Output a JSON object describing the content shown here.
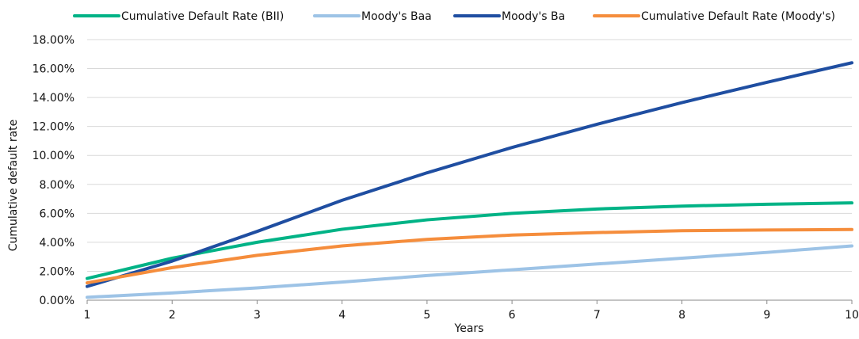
{
  "chart_data": {
    "type": "line",
    "xlabel": "Years",
    "ylabel": "Cumulative default rate",
    "x": [
      1,
      2,
      3,
      4,
      5,
      6,
      7,
      8,
      9,
      10
    ],
    "xlim": [
      1,
      10
    ],
    "ylim": [
      0,
      18
    ],
    "y_ticks": [
      0,
      2,
      4,
      6,
      8,
      10,
      12,
      14,
      16,
      18
    ],
    "y_tick_labels": [
      "0.00%",
      "2.00%",
      "4.00%",
      "6.00%",
      "8.00%",
      "10.00%",
      "12.00%",
      "14.00%",
      "16.00%",
      "18.00%"
    ],
    "x_tick_labels": [
      "1",
      "2",
      "3",
      "4",
      "5",
      "6",
      "7",
      "8",
      "9",
      "10"
    ],
    "grid": "horizontal",
    "legend_position": "top",
    "series": [
      {
        "name": "Cumulative Default Rate (BII)",
        "color": "#00b386",
        "values": [
          1.5,
          2.9,
          4.0,
          4.9,
          5.55,
          6.0,
          6.3,
          6.5,
          6.63,
          6.72
        ]
      },
      {
        "name": "Moody's Baa",
        "color": "#9dc3e6",
        "values": [
          0.2,
          0.5,
          0.85,
          1.25,
          1.7,
          2.1,
          2.5,
          2.9,
          3.3,
          3.75
        ]
      },
      {
        "name": "Moody's Ba",
        "color": "#1f4ea1",
        "values": [
          0.95,
          2.7,
          4.75,
          6.9,
          8.8,
          10.55,
          12.15,
          13.65,
          15.05,
          16.4
        ]
      },
      {
        "name": "Cumulative Default Rate (Moody's)",
        "color": "#f58d3c",
        "values": [
          1.2,
          2.25,
          3.1,
          3.75,
          4.2,
          4.5,
          4.67,
          4.8,
          4.85,
          4.88
        ]
      }
    ]
  }
}
